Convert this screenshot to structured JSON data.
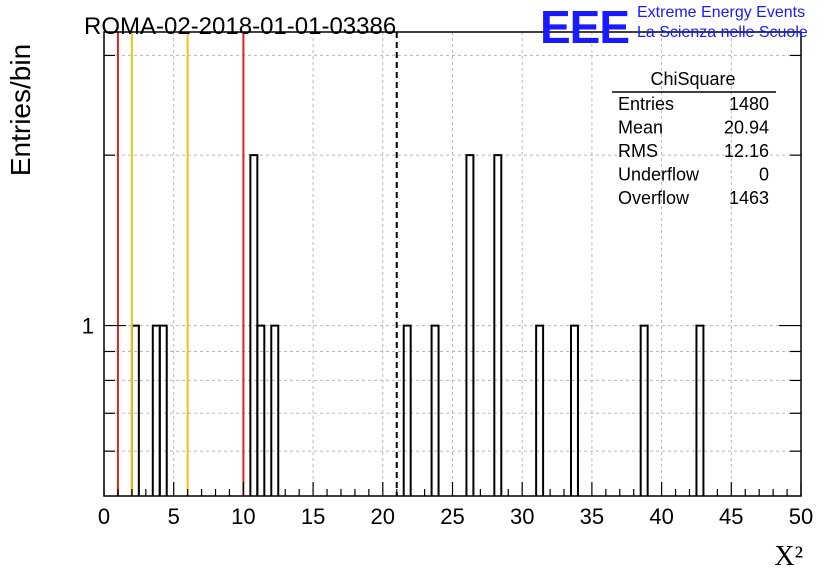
{
  "chart_data": {
    "type": "bar",
    "title": "ROMA-02-2018-01-01-03386",
    "xlabel": "X²",
    "ylabel": "Entries/bin",
    "xlim": [
      0,
      50
    ],
    "ylim": [
      0.5,
      3.3
    ],
    "log_y": true,
    "grid": true,
    "bin_width": 0.5,
    "y_tick_labels": [
      {
        "value": 1,
        "label": "1"
      }
    ],
    "x_ticks": [
      0,
      5,
      10,
      15,
      20,
      25,
      30,
      35,
      40,
      45,
      50
    ],
    "bins": [
      {
        "x0": 2.0,
        "x1": 2.5,
        "count": 1
      },
      {
        "x0": 3.5,
        "x1": 4.0,
        "count": 1
      },
      {
        "x0": 4.0,
        "x1": 4.5,
        "count": 1
      },
      {
        "x0": 10.5,
        "x1": 11.0,
        "count": 2
      },
      {
        "x0": 11.0,
        "x1": 11.5,
        "count": 1
      },
      {
        "x0": 12.0,
        "x1": 12.5,
        "count": 1
      },
      {
        "x0": 21.5,
        "x1": 22.0,
        "count": 1
      },
      {
        "x0": 23.5,
        "x1": 24.0,
        "count": 1
      },
      {
        "x0": 26.0,
        "x1": 26.5,
        "count": 2
      },
      {
        "x0": 28.0,
        "x1": 28.5,
        "count": 2
      },
      {
        "x0": 31.0,
        "x1": 31.5,
        "count": 1
      },
      {
        "x0": 33.5,
        "x1": 34.0,
        "count": 1
      },
      {
        "x0": 38.5,
        "x1": 39.0,
        "count": 1
      },
      {
        "x0": 42.5,
        "x1": 43.0,
        "count": 1
      }
    ],
    "vertical_lines": [
      {
        "x": 1.0,
        "color": "#dd2222",
        "style": "solid"
      },
      {
        "x": 2.0,
        "color": "#f0c020",
        "style": "solid"
      },
      {
        "x": 6.0,
        "color": "#f0c020",
        "style": "solid"
      },
      {
        "x": 10.0,
        "color": "#dd2222",
        "style": "solid"
      },
      {
        "x": 21.0,
        "color": "#000000",
        "style": "dashed"
      }
    ],
    "stats_box": {
      "title": "ChiSquare",
      "rows": [
        {
          "label": "Entries",
          "value": "1480"
        },
        {
          "label": "Mean",
          "value": "20.94"
        },
        {
          "label": "RMS",
          "value": "12.16"
        },
        {
          "label": "Underflow",
          "value": "0"
        },
        {
          "label": "Overflow",
          "value": "1463"
        }
      ]
    }
  },
  "logo": {
    "big": "EEE",
    "line1": "Extreme Energy Events",
    "line2": "La Scienza nelle Scuole",
    "color": "#1a1aff"
  }
}
